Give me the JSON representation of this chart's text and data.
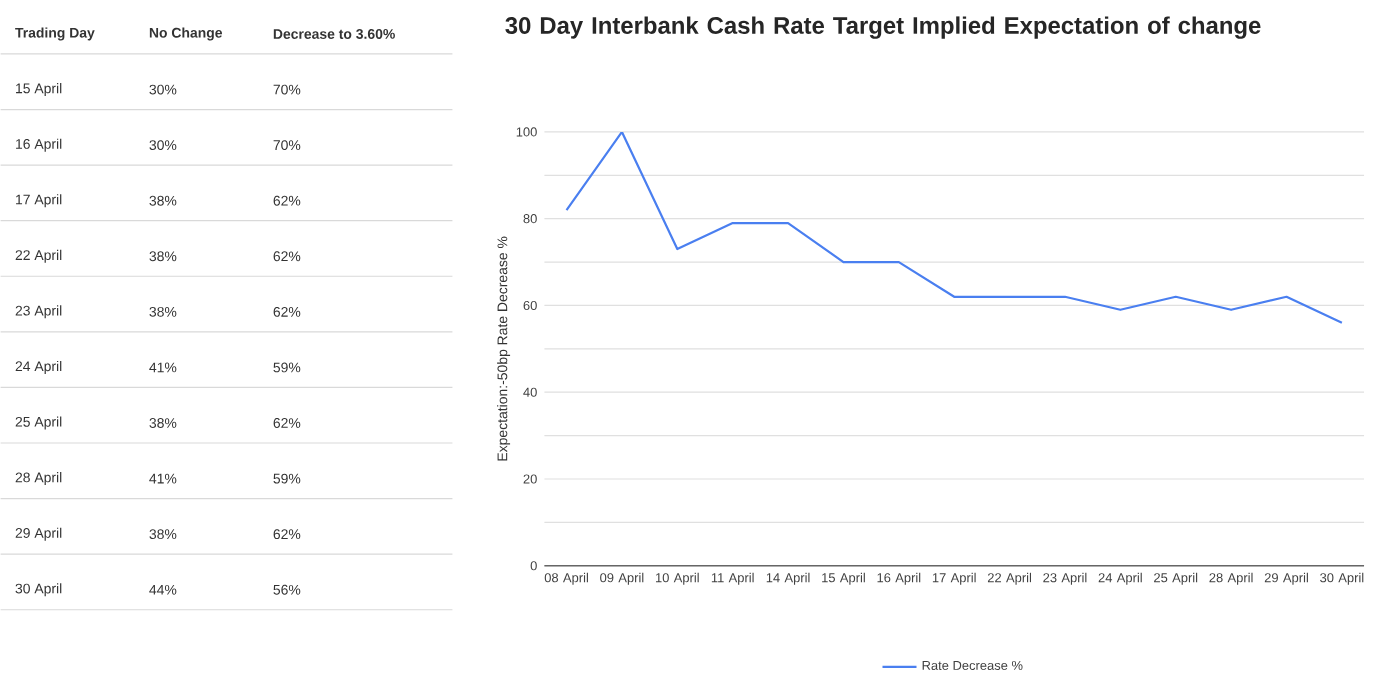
{
  "chart_data": [
    {
      "type": "other",
      "annotations": [
        "Trading Day",
        "No Change",
        "Decrease to 3.60%",
        "15 April",
        "30%",
        "70%",
        "16 April",
        "30%",
        "70%",
        "17 April",
        "38%",
        "62%",
        "22 April",
        "38%",
        "62%",
        "23 April",
        "38%",
        "62%",
        "24 April",
        "41%",
        "59%",
        "25 April",
        "38%",
        "62%",
        "28 April",
        "41%",
        "59%",
        "29 April",
        "38%",
        "62%",
        "30 April",
        "44%",
        "56%"
      ]
    },
    {
      "type": "line",
      "title": "30 Day Interbank Cash Rate Target Implied Expectation of change",
      "ylabel": "Expectation:-50bp Rate Decrease %",
      "categories": [
        "08 April",
        "09 April",
        "10 April",
        "11 April",
        "14 April",
        "15 April",
        "16 April",
        "17 April",
        "22 April",
        "23 April",
        "24 April",
        "25 April",
        "28 April",
        "29 April",
        "30 April"
      ],
      "series": [
        {
          "name": "Rate Decrease %",
          "color": "#4a7ff0",
          "values": [
            82,
            100,
            73,
            79,
            79,
            70,
            70,
            62,
            62,
            62,
            59,
            62,
            59,
            62,
            56
          ]
        }
      ],
      "ylim": [
        0,
        100
      ],
      "yticks": [
        0,
        {
          "value": 10,
          "label": null
        },
        20,
        {
          "value": 30,
          "label": null
        },
        40,
        {
          "value": 50,
          "label": null
        },
        60,
        {
          "value": 70,
          "label": null
        },
        80,
        {
          "value": 90,
          "label": null
        },
        100
      ],
      "grid": "y",
      "legend": "bottom",
      "marker": "none",
      "line_style": "solid"
    }
  ]
}
